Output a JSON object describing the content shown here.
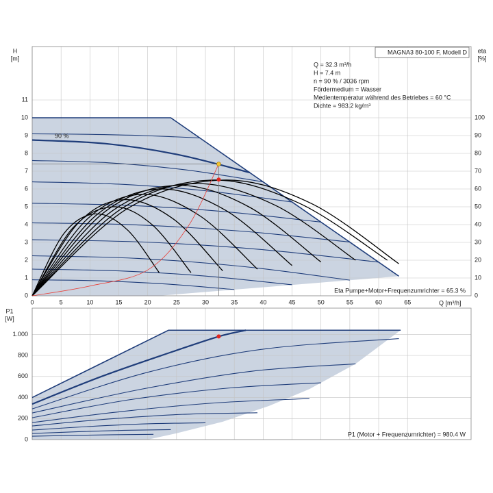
{
  "chart_data": [
    {
      "type": "line",
      "model": "MAGNA3 80-100 F, Modell D",
      "info": [
        "Q = 32.3 m³/h",
        "H = 7.4 m",
        "n = 90 % / 3036 rpm",
        "Fördermedium = Wasser",
        "Medientemperatur während des Betriebes = 60 °C",
        "Dichte = 983.2 kg/m³"
      ],
      "y_label": [
        "H",
        "[m]"
      ],
      "y2_label": [
        "eta",
        "[%]"
      ],
      "x_label": "Q [m³/h]",
      "footer": "Eta Pumpe+Motor+Frequenzumrichter = 65.3 %",
      "curve_label": "90 %",
      "xlim": [
        0,
        76
      ],
      "ylim": [
        0,
        14
      ],
      "y2lim": [
        0,
        140
      ],
      "xticks": [
        0,
        5,
        10,
        15,
        20,
        25,
        30,
        35,
        40,
        45,
        50,
        55,
        60,
        65
      ],
      "yticks": [
        0,
        1,
        2,
        3,
        4,
        5,
        6,
        7,
        8,
        9,
        10,
        11
      ],
      "y2ticks": [
        0,
        10,
        20,
        30,
        40,
        50,
        60,
        70,
        80,
        90,
        100
      ],
      "grid": true,
      "fill_color": "#cbd4e1",
      "curve_color": "#1f3d7a",
      "eta_color": "#000000",
      "system_color": "#e8413a",
      "envelope": {
        "x": [
          0,
          24,
          63.5,
          21.9,
          0
        ],
        "values": [
          10,
          10,
          1.1,
          0,
          0
        ]
      },
      "max_curve": {
        "x": [
          0,
          24,
          63.5
        ],
        "values": [
          10,
          10,
          1.1
        ]
      },
      "curves": [
        {
          "x": [
            0,
            9.7,
            19.3,
            29
          ],
          "values": [
            9.1,
            9.07,
            9.0,
            8.87
          ]
        },
        {
          "x": [
            0,
            12.6,
            25.1,
            37.7
          ],
          "values": [
            8.75,
            8.55,
            7.94,
            6.92
          ],
          "bold": true
        },
        {
          "x": [
            0,
            13.3,
            26.7,
            40
          ],
          "values": [
            7.6,
            7.47,
            7.07,
            6.4
          ]
        },
        {
          "x": [
            0,
            15,
            30,
            45
          ],
          "values": [
            6.4,
            6.27,
            5.9,
            5.27
          ]
        },
        {
          "x": [
            0,
            16.7,
            33.3,
            50
          ],
          "values": [
            5.2,
            5.08,
            4.73,
            4.14
          ]
        },
        {
          "x": [
            0,
            18.3,
            36.7,
            55
          ],
          "values": [
            4.1,
            3.98,
            3.62,
            3.02
          ]
        },
        {
          "x": [
            0,
            20,
            40,
            60
          ],
          "values": [
            3.15,
            3.01,
            2.59,
            1.89
          ]
        },
        {
          "x": [
            0,
            18.3,
            36.7,
            55
          ],
          "values": [
            2.25,
            2.1,
            1.64,
            0.88
          ]
        },
        {
          "x": [
            0,
            15,
            30,
            45
          ],
          "values": [
            1.5,
            1.4,
            1.11,
            0.62
          ]
        },
        {
          "x": [
            0,
            11.7,
            23.3,
            35
          ],
          "values": [
            0.9,
            0.84,
            0.66,
            0.35
          ]
        }
      ],
      "eta_curves": [
        {
          "axis": "y2",
          "x": [
            0,
            5.5,
            11,
            16.5,
            22
          ],
          "values": [
            0,
            35,
            46,
            37,
            13
          ]
        },
        {
          "axis": "y2",
          "x": [
            0,
            7,
            14,
            20.75,
            27.5
          ],
          "values": [
            0,
            38,
            50,
            40,
            13
          ]
        },
        {
          "axis": "y2",
          "x": [
            0,
            8,
            16,
            24.5,
            33
          ],
          "values": [
            0,
            41,
            54,
            43,
            14
          ]
        },
        {
          "axis": "y2",
          "x": [
            0,
            9.5,
            19,
            29,
            39
          ],
          "values": [
            0,
            43,
            57,
            45,
            15
          ]
        },
        {
          "axis": "y2",
          "x": [
            0,
            11,
            22,
            33.5,
            45
          ],
          "values": [
            0,
            45,
            60,
            48,
            17
          ]
        },
        {
          "axis": "y2",
          "x": [
            0,
            12.5,
            25,
            37.5,
            50
          ],
          "values": [
            0,
            47,
            62,
            50,
            19
          ]
        },
        {
          "axis": "y2",
          "x": [
            0,
            14,
            28,
            42,
            56
          ],
          "values": [
            0,
            48,
            63,
            51,
            20
          ]
        },
        {
          "axis": "y2",
          "x": [
            0,
            15.5,
            31,
            46.25,
            61.5
          ],
          "values": [
            0,
            49,
            65,
            52,
            20
          ]
        },
        {
          "axis": "y2",
          "x": [
            0,
            16.5,
            33,
            48.25,
            63.5
          ],
          "values": [
            0,
            49,
            65,
            52,
            18
          ]
        }
      ],
      "system_curve": {
        "x": [
          0,
          10,
          20,
          27,
          32.3
        ],
        "values": [
          0,
          0.55,
          1.45,
          3.9,
          7.4
        ]
      },
      "duty_point": {
        "x": 32.3,
        "h": 7.4,
        "eta": 65.3,
        "color": "#f2c230",
        "eta_color": "#e3261f"
      }
    },
    {
      "type": "line",
      "y_label": [
        "P1",
        "[W]"
      ],
      "footer": "P1 (Motor + Frequenzumrichter) = 980.4 W",
      "xlim": [
        0,
        76
      ],
      "ylim": [
        0,
        1250
      ],
      "xticks": [
        0,
        5,
        10,
        15,
        20,
        25,
        30,
        35,
        40,
        45,
        50,
        55,
        60,
        65
      ],
      "yticks": [
        0,
        200,
        400,
        600,
        800,
        {
          "value": 1000,
          "label": "1.000"
        }
      ],
      "grid": true,
      "fill_color": "#cbd4e1",
      "curve_color": "#1f3d7a",
      "envelope": {
        "x": [
          0,
          0,
          23.6,
          63.8,
          56,
          48,
          41,
          33,
          25,
          20
        ],
        "values": [
          0,
          400,
          1040,
          1040,
          720,
          480,
          320,
          170,
          60,
          0
        ]
      },
      "max_curve": {
        "x": [
          0,
          23.6,
          63.8
        ],
        "values": [
          400,
          1040,
          1040
        ]
      },
      "curves": [
        {
          "x": [
            0,
            12,
            24,
            32.3,
            37
          ],
          "values": [
            338,
            600,
            830,
            980.4,
            1040
          ],
          "bold": true
        },
        {
          "x": [
            0,
            20,
            40,
            63.5
          ],
          "values": [
            292,
            640,
            860,
            960
          ]
        },
        {
          "x": [
            0,
            19,
            38,
            56
          ],
          "values": [
            253,
            480,
            650,
            720
          ]
        },
        {
          "x": [
            0,
            17,
            34,
            50
          ],
          "values": [
            208,
            380,
            490,
            540
          ]
        },
        {
          "x": [
            0,
            16,
            32,
            48
          ],
          "values": [
            162,
            270,
            350,
            390
          ]
        },
        {
          "x": [
            0,
            13,
            26,
            39
          ],
          "values": [
            130,
            195,
            240,
            255
          ]
        },
        {
          "x": [
            0,
            10,
            20,
            30
          ],
          "values": [
            91,
            125,
            150,
            160
          ]
        },
        {
          "x": [
            0,
            8,
            16,
            24
          ],
          "values": [
            58,
            75,
            88,
            95
          ]
        },
        {
          "x": [
            0,
            7,
            14,
            21
          ],
          "values": [
            32,
            40,
            46,
            50
          ]
        }
      ],
      "duty_point": {
        "x": 32.3,
        "p1": 980.4,
        "color": "#e3261f"
      }
    }
  ]
}
